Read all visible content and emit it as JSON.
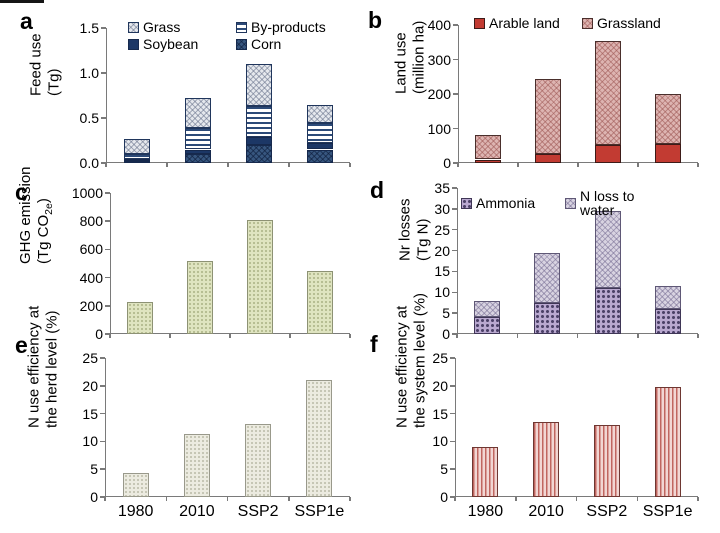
{
  "figure": {
    "background": "#ffffff",
    "axis_color": "#7a7a7a"
  },
  "x_categories": [
    "1980",
    "2010",
    "SSP2",
    "SSP1e"
  ],
  "styles": {
    "grass": {
      "pattern": "cross",
      "fill": "#e5e8ed",
      "line": "rgba(105,115,140,0.55)",
      "border": "#20365c"
    },
    "byproducts": {
      "pattern": "hstripe",
      "fill": "#ffffff",
      "line": "#2c4a78",
      "border": "#20365c"
    },
    "soybean": {
      "pattern": "solid",
      "fill": "#1c3766",
      "border": "#16294d"
    },
    "corn": {
      "pattern": "cross",
      "fill": "#37567f",
      "line": "rgba(10,25,55,0.55)",
      "border": "#16294d"
    },
    "arable": {
      "pattern": "solid",
      "fill": "#c23b32",
      "border": "#3d1b18"
    },
    "grassland": {
      "pattern": "cross",
      "fill": "#ddb4b1",
      "line": "rgba(158,88,85,0.55)",
      "border": "#4a2f2c"
    },
    "ghg": {
      "pattern": "dots",
      "fill": "#dfe4c0",
      "line": "rgba(125,135,82,0.55)",
      "border": "#8d9274"
    },
    "ammonia": {
      "pattern": "dotgrid",
      "fill": "#b9a8d0",
      "line": "#4c4168",
      "border": "#3f3656"
    },
    "nwater": {
      "pattern": "cross",
      "fill": "#d8d3e1",
      "line": "rgba(112,102,142,0.5)",
      "border": "#5f5876"
    },
    "herd": {
      "pattern": "dots",
      "fill": "#ecebe0",
      "line": "rgba(145,145,120,0.55)",
      "border": "#99998b"
    },
    "system": {
      "pattern": "vstripe",
      "fill": "#f2d6d3",
      "line": "#c0655f",
      "border": "#6e3732"
    }
  },
  "chart_data": [
    {
      "letter": "a",
      "type": "bar",
      "stacked": true,
      "y_title_lines": [
        "Feed use",
        "(Tg)"
      ],
      "ylim": [
        0,
        1.5
      ],
      "ytick_labels": [
        "0.0",
        "0.5",
        "1.0",
        "1.5"
      ],
      "categories": [
        "1980",
        "2010",
        "SSP2",
        "SSP1e"
      ],
      "show_x_labels": false,
      "legend": {
        "items": [
          {
            "label": "Grass",
            "style": "grass"
          },
          {
            "label": "By-products",
            "style": "byproducts"
          },
          {
            "label": "Soybean",
            "style": "soybean"
          },
          {
            "label": "Corn",
            "style": "corn"
          }
        ]
      },
      "series": [
        {
          "name": "Corn",
          "style": "corn",
          "values": [
            0.02,
            0.1,
            0.2,
            0.15
          ]
        },
        {
          "name": "Soybean",
          "style": "soybean",
          "values": [
            0.02,
            0.05,
            0.09,
            0.07
          ]
        },
        {
          "name": "By-products",
          "style": "byproducts",
          "values": [
            0.06,
            0.24,
            0.34,
            0.22
          ]
        },
        {
          "name": "Grass",
          "style": "grass",
          "values": [
            0.17,
            0.33,
            0.47,
            0.21
          ]
        }
      ]
    },
    {
      "letter": "b",
      "type": "bar",
      "stacked": true,
      "y_title_lines": [
        "Land use",
        "(million ha)"
      ],
      "ylim": [
        0,
        400
      ],
      "ytick_labels": [
        "0",
        "100",
        "200",
        "300",
        "400"
      ],
      "categories": [
        "1980",
        "2010",
        "SSP2",
        "SSP1e"
      ],
      "show_x_labels": false,
      "legend": {
        "items": [
          {
            "label": "Arable land",
            "style": "arable"
          },
          {
            "label": "Grassland",
            "style": "grassland"
          }
        ]
      },
      "series": [
        {
          "name": "Arable land",
          "style": "arable",
          "values": [
            10,
            25,
            53,
            55
          ]
        },
        {
          "name": "Grassland",
          "style": "grassland",
          "values": [
            70,
            220,
            302,
            145
          ]
        }
      ]
    },
    {
      "letter": "c",
      "type": "bar",
      "stacked": false,
      "y_title_lines": [
        "GHG emission",
        "(Tg CO2e)"
      ],
      "ylim": [
        0,
        1000
      ],
      "ytick_labels": [
        "0",
        "200",
        "400",
        "600",
        "800",
        "1000"
      ],
      "categories": [
        "1980",
        "2010",
        "SSP2",
        "SSP1e"
      ],
      "show_x_labels": false,
      "series": [
        {
          "name": "GHG emission",
          "style": "ghg",
          "values": [
            230,
            520,
            810,
            450
          ]
        }
      ]
    },
    {
      "letter": "d",
      "type": "bar",
      "stacked": true,
      "y_title_lines": [
        "Nr losses",
        "(Tg N)"
      ],
      "ylim": [
        0,
        35
      ],
      "ytick_labels": [
        "0",
        "5",
        "10",
        "15",
        "20",
        "25",
        "30",
        "35"
      ],
      "categories": [
        "1980",
        "2010",
        "SSP2",
        "SSP1e"
      ],
      "show_x_labels": false,
      "legend": {
        "items": [
          {
            "label": "Ammonia",
            "style": "ammonia"
          },
          {
            "label": "N loss to water",
            "style": "nwater"
          }
        ]
      },
      "series": [
        {
          "name": "Ammonia",
          "style": "ammonia",
          "values": [
            4,
            7.5,
            11,
            6
          ]
        },
        {
          "name": "N loss to water",
          "style": "nwater",
          "values": [
            4,
            12,
            18.5,
            5.5
          ]
        }
      ]
    },
    {
      "letter": "e",
      "type": "bar",
      "stacked": false,
      "y_title_lines": [
        "N use efficiency at",
        "the herd level (%)"
      ],
      "ylim": [
        0,
        25
      ],
      "ytick_labels": [
        "0",
        "5",
        "10",
        "15",
        "20",
        "25"
      ],
      "categories": [
        "1980",
        "2010",
        "SSP2",
        "SSP1e"
      ],
      "show_x_labels": true,
      "series": [
        {
          "name": "N use efficiency at the herd level",
          "style": "herd",
          "values": [
            4.3,
            11.3,
            13.2,
            21.0
          ]
        }
      ]
    },
    {
      "letter": "f",
      "type": "bar",
      "stacked": false,
      "y_title_lines": [
        "N use efficiency at",
        "the system level (%)"
      ],
      "ylim": [
        0,
        25
      ],
      "ytick_labels": [
        "0",
        "5",
        "10",
        "15",
        "20",
        "25"
      ],
      "categories": [
        "1980",
        "2010",
        "SSP2",
        "SSP1e"
      ],
      "show_x_labels": true,
      "series": [
        {
          "name": "N use efficiency at the system level",
          "style": "system",
          "values": [
            9.0,
            13.5,
            13.0,
            19.8
          ]
        }
      ]
    }
  ]
}
